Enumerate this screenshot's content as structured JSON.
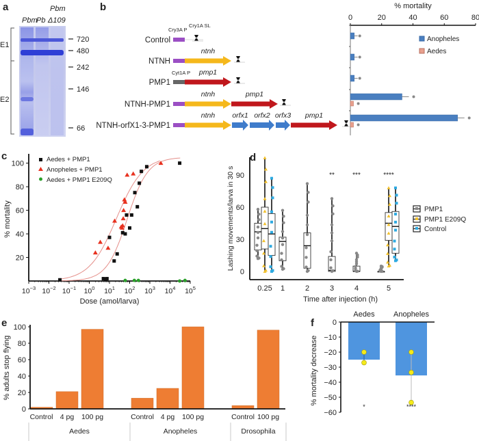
{
  "panels": {
    "a": {
      "label": "a"
    },
    "b": {
      "label": "b"
    },
    "c": {
      "label": "c"
    },
    "d": {
      "label": "d"
    },
    "e": {
      "label": "e"
    },
    "f": {
      "label": "f"
    }
  },
  "gel": {
    "lanes": [
      "Pbm",
      "Pb",
      "Pbm Δ109"
    ],
    "lane_top_label": "Pbm",
    "lane3_label": "Δ109",
    "markers": [
      "720",
      "480",
      "242",
      "146",
      "66"
    ],
    "marker_values": [
      720,
      480,
      242,
      146,
      66
    ],
    "regions": [
      "E1",
      "E2"
    ]
  },
  "constructs": {
    "rows": [
      {
        "name": "Control",
        "promoter": "Cry3A P",
        "terminator": "Cry1A SL",
        "genes": []
      },
      {
        "name": "NTNH",
        "genes": [
          "ntnh"
        ]
      },
      {
        "name": "PMP1",
        "promoter": "Cyt1A P",
        "genes": [
          "pmp1"
        ]
      },
      {
        "name": "NTNH-PMP1",
        "genes": [
          "ntnh",
          "pmp1"
        ]
      },
      {
        "name": "NTNH-orfX1-3-PMP1",
        "genes": [
          "ntnh",
          "orfx1",
          "orfx2",
          "orfx3",
          "pmp1"
        ]
      }
    ],
    "colors": {
      "promoter_cry3a": "#9b4fc4",
      "promoter_cyt1a": "#666666",
      "ntnh": "#f5b81c",
      "pmp1": "#c0171c",
      "orfx": "#3f7ccb"
    }
  },
  "chart_data": [
    {
      "id": "b",
      "type": "bar",
      "orientation": "horizontal",
      "title": "",
      "xlabel": "% mortality",
      "xlim": [
        0,
        80
      ],
      "xticks": [
        "0",
        "20",
        "40",
        "60",
        "80"
      ],
      "categories": [
        "Control",
        "NTNH",
        "PMP1",
        "NTNH-PMP1",
        "NTNH-orfX1-3-PMP1"
      ],
      "series": [
        {
          "name": "Anopheles",
          "color": "#4a7fc0",
          "values": [
            2.5,
            2.5,
            2.5,
            33,
            68.5
          ]
        },
        {
          "name": "Aedes",
          "color": "#e8a08e",
          "values": [
            null,
            null,
            null,
            2,
            2
          ]
        }
      ],
      "legend": [
        "Anopheles",
        "Aedes"
      ],
      "legend_position": "top-right"
    },
    {
      "id": "c",
      "type": "scatter",
      "xscale": "log",
      "xlabel": "Dose (amol/larva)",
      "ylabel": "% mortality",
      "xlim_exp": [
        -3,
        5
      ],
      "xticks": [
        "10^-3",
        "10^-2",
        "10^-1",
        "10^0",
        "10^1",
        "10^2",
        "10^3",
        "10^4",
        "10^5"
      ],
      "ylim": [
        0,
        105
      ],
      "yticks": [
        "20",
        "40",
        "60",
        "80",
        "100"
      ],
      "series": [
        {
          "name": "Aedes + PMP1",
          "marker": "square",
          "color": "#111111",
          "points": [
            [
              0.035,
              1
            ],
            [
              5,
              2
            ],
            [
              6.5,
              1.5
            ],
            [
              7.5,
              2
            ],
            [
              10,
              37
            ],
            [
              17,
              17
            ],
            [
              24,
              23
            ],
            [
              45,
              41
            ],
            [
              60,
              40
            ],
            [
              70,
              56
            ],
            [
              100,
              45
            ],
            [
              125,
              56
            ],
            [
              180,
              75
            ],
            [
              240,
              63
            ],
            [
              300,
              83
            ],
            [
              380,
              93
            ],
            [
              700,
              97
            ],
            [
              30000,
              100
            ]
          ]
        },
        {
          "name": "Anopheles + PMP1",
          "marker": "triangle",
          "color": "#e8311f",
          "points": [
            [
              2,
              24
            ],
            [
              3.5,
              33
            ],
            [
              8.5,
              28
            ],
            [
              18,
              51
            ],
            [
              38,
              46
            ],
            [
              42,
              45
            ],
            [
              45,
              47
            ],
            [
              48,
              53
            ],
            [
              50,
              60
            ],
            [
              55,
              69
            ],
            [
              60,
              67
            ],
            [
              75,
              90
            ],
            [
              150,
              91
            ],
            [
              3500,
              100
            ]
          ]
        },
        {
          "name": "Aedes + PMP1 E209Q",
          "marker": "circle",
          "color": "#2aa02a",
          "points": [
            [
              60,
              0.5
            ],
            [
              170,
              0.5
            ],
            [
              270,
              0.5
            ],
            [
              30000,
              0
            ],
            [
              55000,
              0.5
            ]
          ]
        }
      ],
      "legend_position": "top-left"
    },
    {
      "id": "d",
      "type": "box",
      "xlabel": "Time after injection (h)",
      "ylabel": "Lashing movements/larva in 30 s",
      "ylim": [
        0,
        105
      ],
      "yticks": [
        "0",
        "30",
        "60",
        "90"
      ],
      "categories": [
        "0.25",
        "1",
        "2",
        "3",
        "4",
        "5"
      ],
      "significance": {
        "3": "**",
        "4": "***",
        "5": "****"
      },
      "series": [
        {
          "name": "PMP1",
          "color": "#888888",
          "boxes": {
            "0.25": [
              12,
              20,
              37,
              45,
              58
            ],
            "1": [
              2,
              10,
              28,
              32,
              57
            ],
            "2": [
              0,
              3,
              24,
              36,
              82
            ],
            "3": [
              0,
              0,
              1,
              14,
              68
            ],
            "4": [
              0,
              0,
              0,
              5,
              17
            ],
            "5": [
              0,
              0,
              0,
              0,
              5
            ]
          }
        },
        {
          "name": "PMP1 E209Q",
          "color": "#f2c12e",
          "boxes": {
            "0.25": [
              0,
              21,
              40,
              60,
              106
            ],
            "5": [
              5,
              29,
              45,
              55,
              78
            ]
          }
        },
        {
          "name": "Control",
          "color": "#2eaae1",
          "boxes": {
            "0.25": [
              0,
              15,
              35,
              54,
              87
            ],
            "5": [
              10,
              17,
              42,
              56,
              78
            ]
          }
        }
      ],
      "legend": [
        "PMP1",
        "PMP1 E209Q",
        "Control"
      ],
      "legend_position": "right"
    },
    {
      "id": "e",
      "type": "bar",
      "ylabel": "% adults stop flying",
      "ylim": [
        0,
        100
      ],
      "yticks": [
        "0",
        "20",
        "40",
        "60",
        "80",
        "100"
      ],
      "groups": [
        {
          "name": "Aedes",
          "categories": [
            "Control",
            "4 pg",
            "100 pg"
          ],
          "values": [
            2,
            21,
            97
          ]
        },
        {
          "name": "Anopheles",
          "categories": [
            "Control",
            "4 pg",
            "100 pg"
          ],
          "values": [
            13,
            25,
            100
          ]
        },
        {
          "name": "Drosophila",
          "categories": [
            "Control",
            "100 pg"
          ],
          "values": [
            4,
            96
          ]
        }
      ],
      "color": "#ee7d33"
    },
    {
      "id": "f",
      "type": "bar",
      "ylabel": "% mortality decrease",
      "ylim": [
        -60,
        0
      ],
      "yticks": [
        "0",
        "-10",
        "-20",
        "-30",
        "-40",
        "-50",
        "-60"
      ],
      "categories": [
        "Aedes",
        "Anopheles"
      ],
      "values": [
        -25,
        -35.5
      ],
      "points": [
        [
          -20,
          -27
        ],
        [
          -20,
          -33.5,
          -53.5
        ]
      ],
      "significance": [
        "*",
        "****"
      ],
      "color": "#4f95df",
      "point_color": "#f5ea1a"
    }
  ]
}
